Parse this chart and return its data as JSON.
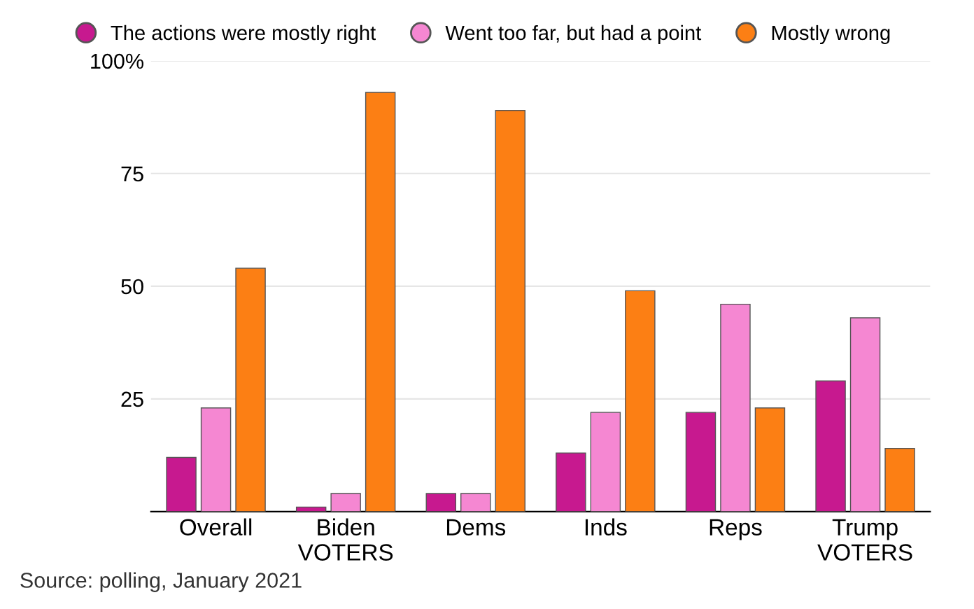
{
  "chart_data": {
    "type": "bar",
    "categories": [
      "Overall",
      "Biden\nVOTERS",
      "Dems",
      "Inds",
      "Reps",
      "Trump\nVOTERS"
    ],
    "series": [
      {
        "name": "The actions were mostly right",
        "color": "#c7198f",
        "values": [
          12,
          1,
          4,
          13,
          22,
          29
        ]
      },
      {
        "name": "Went too far, but had a point",
        "color": "#f587d2",
        "values": [
          23,
          4,
          4,
          22,
          46,
          43
        ]
      },
      {
        "name": "Mostly wrong",
        "color": "#fc7f14",
        "values": [
          54,
          93,
          89,
          49,
          23,
          14
        ]
      }
    ],
    "ylim": [
      0,
      100
    ],
    "yticks": [
      25,
      50,
      75,
      {
        "value": 100,
        "label": "100%"
      }
    ],
    "grid": "y",
    "legend": "top",
    "marker": "circle",
    "annotations": [
      "Source: polling, January 2021"
    ]
  }
}
